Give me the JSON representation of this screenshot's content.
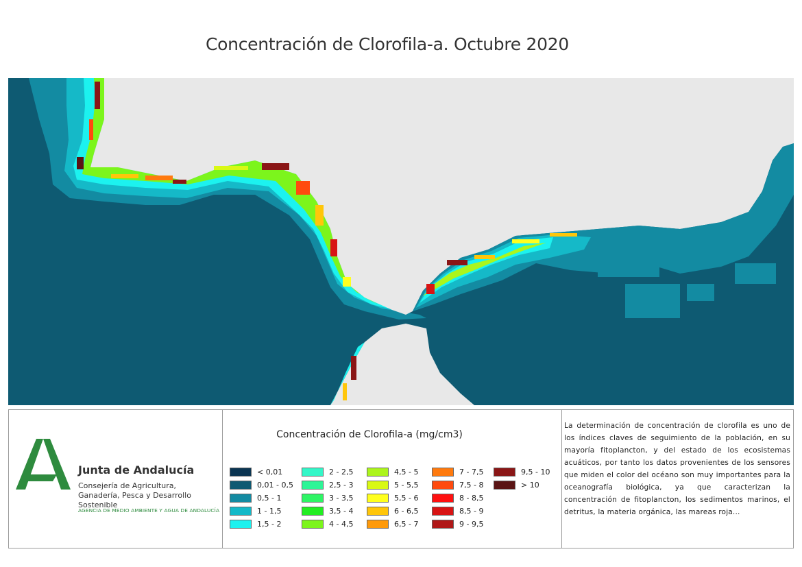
{
  "title": "Concentración de Clorofila-a. Octubre 2020",
  "map": {
    "land_color": "#e8e8e8",
    "ocean_color": "#0e5a72"
  },
  "legend": {
    "title": "Concentración de Clorofila-a (mg/cm3)",
    "items": [
      {
        "label": "< 0,01",
        "color": "#0b3552"
      },
      {
        "label": "0,01 - 0,5",
        "color": "#0e5a72"
      },
      {
        "label": "0,5 - 1",
        "color": "#138ba2"
      },
      {
        "label": "1 - 1,5",
        "color": "#15b9c8"
      },
      {
        "label": "1,5 - 2",
        "color": "#1cf2ef"
      },
      {
        "label": "2 - 2,5",
        "color": "#33f7c8"
      },
      {
        "label": "2,5 - 3",
        "color": "#2ef597"
      },
      {
        "label": "3 - 3,5",
        "color": "#2ef565"
      },
      {
        "label": "3,5 - 4",
        "color": "#22ee22"
      },
      {
        "label": "4 - 4,5",
        "color": "#7cf51c"
      },
      {
        "label": "4,5 - 5",
        "color": "#acf51c"
      },
      {
        "label": "5 - 5,5",
        "color": "#d9f914"
      },
      {
        "label": "5,5 - 6",
        "color": "#ffff1e"
      },
      {
        "label": "6 - 6,5",
        "color": "#ffc60a"
      },
      {
        "label": "6,5 - 7",
        "color": "#ff9a0a"
      },
      {
        "label": "7 - 7,5",
        "color": "#ff7a0e"
      },
      {
        "label": "7,5 - 8",
        "color": "#ff4a0e"
      },
      {
        "label": "8 - 8,5",
        "color": "#ff1010"
      },
      {
        "label": "8,5 - 9",
        "color": "#d81414"
      },
      {
        "label": "9 - 9,5",
        "color": "#b01818"
      },
      {
        "label": "9,5 - 10",
        "color": "#8a1616"
      },
      {
        "label": "> 10",
        "color": "#5a1414"
      }
    ]
  },
  "org": {
    "name": "Junta de Andalucía",
    "subtitle": "Consejería de Agricultura, Ganadería, Pesca y Desarrollo Sostenible",
    "agency": "AGENCIA DE MEDIO AMBIENTE Y AGUA DE ANDALUCÍA",
    "color": "#2e8b3e"
  },
  "description": "La determinación de concentración de clorofila es uno de los índices claves de seguimiento de la población, en su mayoría fitoplancton, y del estado de los ecosistemas acuáticos, por tanto los datos provenientes de los sensores que miden el color del océano son muy importantes para la oceanografía biológica, ya que caracterizan la concentración de fitoplancton, los sedimentos marinos, el detritus, la materia orgánica, las mareas roja..."
}
